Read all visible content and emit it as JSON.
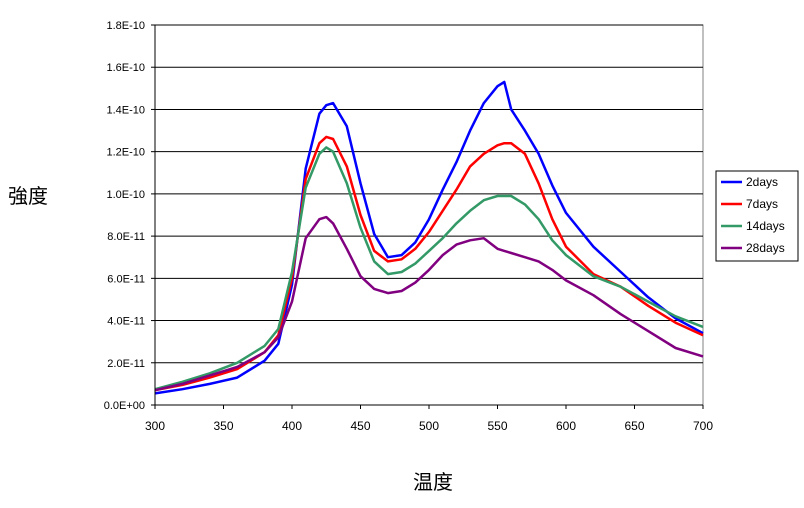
{
  "chart_data": {
    "type": "line",
    "title": "",
    "xlabel": "温度",
    "ylabel": "強度",
    "xlim": [
      300,
      700
    ],
    "ylim": [
      0,
      1.8e-10
    ],
    "x_ticks": [
      300,
      350,
      400,
      450,
      500,
      550,
      600,
      650,
      700
    ],
    "x_tick_labels": [
      "300",
      "350",
      "400",
      "450",
      "500",
      "550",
      "600",
      "650",
      "700"
    ],
    "y_ticks": [
      0,
      2e-11,
      4e-11,
      6e-11,
      8e-11,
      1e-10,
      1.2e-10,
      1.4e-10,
      1.6e-10,
      1.8e-10
    ],
    "y_tick_labels": [
      "0.0E+00",
      "2.0E-11",
      "4.0E-11",
      "6.0E-11",
      "8.0E-11",
      "1.0E-10",
      "1.2E-10",
      "1.4E-10",
      "1.6E-10",
      "1.8E-10"
    ],
    "grid": "horizontal",
    "legend_position": "right",
    "x": [
      300,
      320,
      340,
      360,
      380,
      390,
      400,
      410,
      420,
      425,
      430,
      440,
      450,
      460,
      470,
      480,
      490,
      500,
      510,
      520,
      530,
      540,
      550,
      555,
      560,
      570,
      580,
      590,
      600,
      620,
      640,
      660,
      680,
      700
    ],
    "series": [
      {
        "name": "2days",
        "color": "#0000ff",
        "values": [
          5.5e-12,
          7.5e-12,
          1e-11,
          1.3e-11,
          2.1e-11,
          2.9e-11,
          5.7e-11,
          1.12e-10,
          1.38e-10,
          1.42e-10,
          1.43e-10,
          1.32e-10,
          1.05e-10,
          8.1e-11,
          7e-11,
          7.1e-11,
          7.7e-11,
          8.8e-11,
          1.02e-10,
          1.15e-10,
          1.3e-10,
          1.43e-10,
          1.51e-10,
          1.53e-10,
          1.4e-10,
          1.3e-10,
          1.19e-10,
          1.04e-10,
          9.1e-11,
          7.5e-11,
          6.3e-11,
          5.1e-11,
          4.1e-11,
          3.4e-11
        ]
      },
      {
        "name": "7days",
        "color": "#ff0000",
        "values": [
          7e-12,
          9.5e-12,
          1.3e-11,
          1.7e-11,
          2.5e-11,
          3.3e-11,
          6e-11,
          1.07e-10,
          1.24e-10,
          1.27e-10,
          1.26e-10,
          1.13e-10,
          9e-11,
          7.3e-11,
          6.8e-11,
          6.9e-11,
          7.4e-11,
          8.2e-11,
          9.2e-11,
          1.02e-10,
          1.13e-10,
          1.19e-10,
          1.23e-10,
          1.24e-10,
          1.24e-10,
          1.19e-10,
          1.05e-10,
          8.8e-11,
          7.5e-11,
          6.2e-11,
          5.6e-11,
          4.7e-11,
          3.9e-11,
          3.3e-11
        ]
      },
      {
        "name": "14days",
        "color": "#339966",
        "values": [
          7.5e-12,
          1.1e-11,
          1.5e-11,
          2e-11,
          2.8e-11,
          3.6e-11,
          6.3e-11,
          1.03e-10,
          1.19e-10,
          1.22e-10,
          1.2e-10,
          1.05e-10,
          8.4e-11,
          6.8e-11,
          6.2e-11,
          6.3e-11,
          6.7e-11,
          7.3e-11,
          7.9e-11,
          8.6e-11,
          9.2e-11,
          9.7e-11,
          9.9e-11,
          9.9e-11,
          9.9e-11,
          9.5e-11,
          8.8e-11,
          7.8e-11,
          7.1e-11,
          6.1e-11,
          5.6e-11,
          4.9e-11,
          4.2e-11,
          3.7e-11
        ]
      },
      {
        "name": "28days",
        "color": "#800080",
        "values": [
          7e-12,
          1e-11,
          1.4e-11,
          1.8e-11,
          2.5e-11,
          3.2e-11,
          4.9e-11,
          7.9e-11,
          8.8e-11,
          8.9e-11,
          8.6e-11,
          7.4e-11,
          6.1e-11,
          5.5e-11,
          5.3e-11,
          5.4e-11,
          5.8e-11,
          6.4e-11,
          7.1e-11,
          7.6e-11,
          7.8e-11,
          7.9e-11,
          7.4e-11,
          7.3e-11,
          7.2e-11,
          7e-11,
          6.8e-11,
          6.4e-11,
          5.9e-11,
          5.2e-11,
          4.3e-11,
          3.5e-11,
          2.7e-11,
          2.3e-11
        ]
      }
    ]
  }
}
